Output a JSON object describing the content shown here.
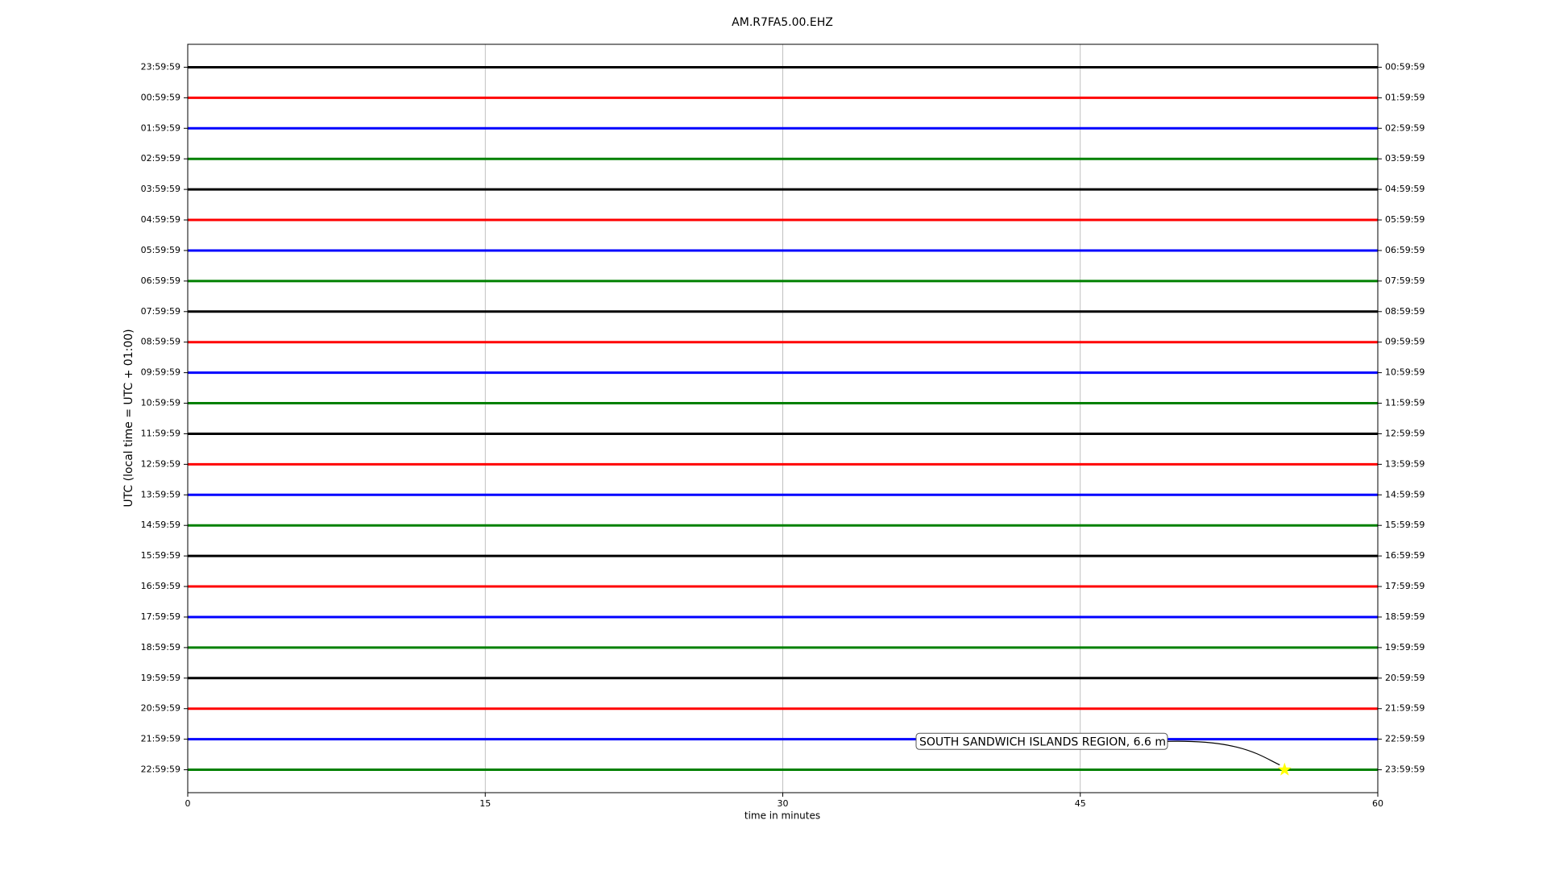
{
  "chart_data": {
    "type": "helicorder",
    "title": "AM.R7FA5.00.EHZ",
    "xlabel": "time in minutes",
    "ylabel": "UTC (local time = UTC + 01:00)",
    "xlim": [
      0,
      60
    ],
    "xticks": [
      0,
      15,
      30,
      45,
      60
    ],
    "grid": true,
    "colors": [
      "#000000",
      "#ff0000",
      "#0000ff",
      "#008000"
    ],
    "categories": [
      "23:59:59",
      "00:59:59",
      "01:59:59",
      "02:59:59",
      "03:59:59",
      "04:59:59",
      "05:59:59",
      "06:59:59",
      "07:59:59",
      "08:59:59",
      "09:59:59",
      "10:59:59",
      "11:59:59",
      "12:59:59",
      "13:59:59",
      "14:59:59",
      "15:59:59",
      "16:59:59",
      "17:59:59",
      "18:59:59",
      "19:59:59",
      "20:59:59",
      "21:59:59",
      "22:59:59"
    ],
    "right_labels": [
      "00:59:59",
      "01:59:59",
      "02:59:59",
      "03:59:59",
      "04:59:59",
      "05:59:59",
      "06:59:59",
      "07:59:59",
      "08:59:59",
      "09:59:59",
      "10:59:59",
      "11:59:59",
      "12:59:59",
      "13:59:59",
      "14:59:59",
      "15:59:59",
      "16:59:59",
      "17:59:59",
      "18:59:59",
      "19:59:59",
      "20:59:59",
      "21:59:59",
      "22:59:59",
      "23:59:59"
    ],
    "event": {
      "label": "SOUTH SANDWICH ISLANDS REGION, 6.6 m",
      "x": 55.3,
      "row": "22:59:59",
      "color": "#ffff00"
    }
  }
}
